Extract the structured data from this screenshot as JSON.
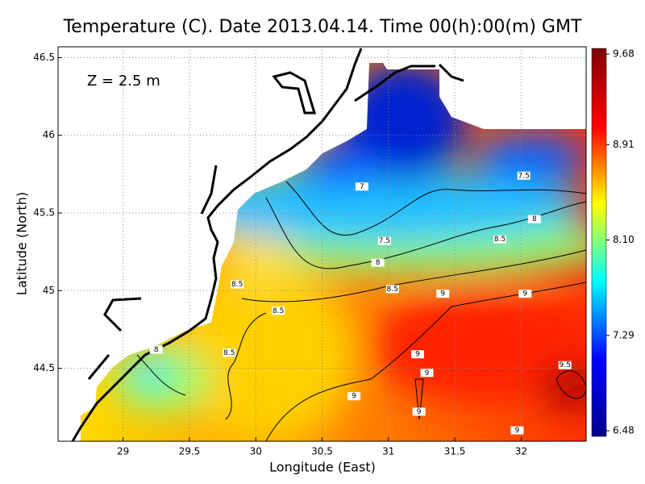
{
  "map": {
    "title": "Temperature (C). Date 2013.04.14. Time 00(h):00(m) GMT",
    "annotation": "Z = 2.5 m",
    "x_label": "Longitude (East)",
    "y_label": "Latitude (North)",
    "xlim": [
      28.51,
      32.49
    ],
    "ylim": [
      44.03,
      46.57
    ],
    "xticks": [
      29,
      29.5,
      30,
      30.5,
      31,
      31.5,
      32
    ],
    "yticks": [
      44.5,
      45,
      45.5,
      46,
      46.5
    ],
    "grid": true,
    "colorbar": {
      "lim": [
        6.48,
        9.68
      ],
      "ticks": [
        6.48,
        7.29,
        {
          "value": 8.1,
          "label": "8.10"
        },
        8.91,
        9.68
      ],
      "colors": [
        "#00008f",
        "#0000ff",
        "#00ffff",
        "#ffff00",
        "#ff0000",
        "#800000"
      ]
    },
    "contour_labels": [
      {
        "value": 7,
        "lon": 30.8,
        "lat": 45.67
      },
      {
        "value": 7.5,
        "lon": 32.02,
        "lat": 45.74
      },
      {
        "value": 8,
        "lon": 32.1,
        "lat": 45.46
      },
      {
        "value": 7.5,
        "lon": 30.97,
        "lat": 45.32
      },
      {
        "value": 8.5,
        "lon": 31.84,
        "lat": 45.33
      },
      {
        "value": 8,
        "lon": 30.92,
        "lat": 45.18
      },
      {
        "value": 8.5,
        "lon": 29.86,
        "lat": 45.04
      },
      {
        "value": 8.5,
        "lon": 31.03,
        "lat": 45.01
      },
      {
        "value": 9,
        "lon": 31.41,
        "lat": 44.98
      },
      {
        "value": 9,
        "lon": 32.03,
        "lat": 44.98
      },
      {
        "value": 8.5,
        "lon": 30.17,
        "lat": 44.87
      },
      {
        "value": 8,
        "lon": 29.25,
        "lat": 44.62
      },
      {
        "value": 8.5,
        "lon": 29.8,
        "lat": 44.6
      },
      {
        "value": 9,
        "lon": 31.22,
        "lat": 44.59
      },
      {
        "value": 9,
        "lon": 31.29,
        "lat": 44.47
      },
      {
        "value": 9.5,
        "lon": 32.33,
        "lat": 44.52
      },
      {
        "value": 9,
        "lon": 30.74,
        "lat": 44.32
      },
      {
        "value": 9,
        "lon": 31.23,
        "lat": 44.22
      },
      {
        "value": 9,
        "lon": 31.97,
        "lat": 44.1
      }
    ]
  }
}
